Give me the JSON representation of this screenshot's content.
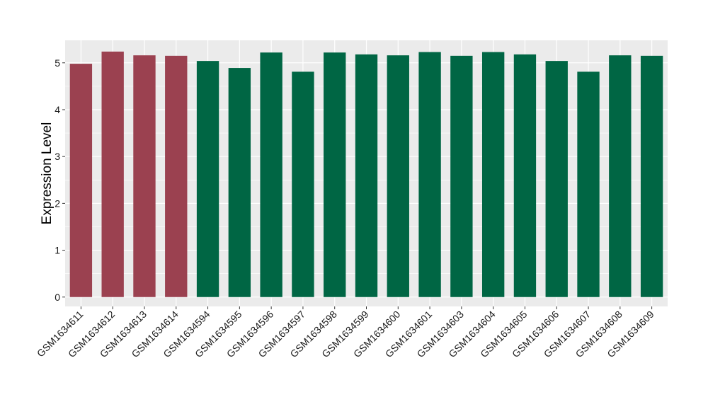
{
  "chart_data": {
    "type": "bar",
    "title": "",
    "xlabel": "",
    "ylabel": "Expression Level",
    "ylim": [
      -0.2,
      5.48
    ],
    "yticks": [
      0,
      1,
      2,
      3,
      4,
      5
    ],
    "grid": true,
    "background": "#ebebeb",
    "grid_color": "#ffffff",
    "group_colors": {
      "group1": "#9b4150",
      "group2": "#006644"
    },
    "categories": [
      "GSM1634611",
      "GSM1634612",
      "GSM1634613",
      "GSM1634614",
      "GSM1634594",
      "GSM1634595",
      "GSM1634596",
      "GSM1634597",
      "GSM1634598",
      "GSM1634599",
      "GSM1634600",
      "GSM1634601",
      "GSM1634603",
      "GSM1634604",
      "GSM1634605",
      "GSM1634606",
      "GSM1634607",
      "GSM1634608",
      "GSM1634609"
    ],
    "values": [
      4.98,
      5.24,
      5.16,
      5.15,
      5.04,
      4.89,
      5.22,
      4.81,
      5.22,
      5.18,
      5.16,
      5.23,
      5.15,
      5.23,
      5.18,
      5.04,
      4.81,
      5.16,
      5.15
    ],
    "groups": [
      "group1",
      "group1",
      "group1",
      "group1",
      "group2",
      "group2",
      "group2",
      "group2",
      "group2",
      "group2",
      "group2",
      "group2",
      "group2",
      "group2",
      "group2",
      "group2",
      "group2",
      "group2",
      "group2"
    ]
  }
}
